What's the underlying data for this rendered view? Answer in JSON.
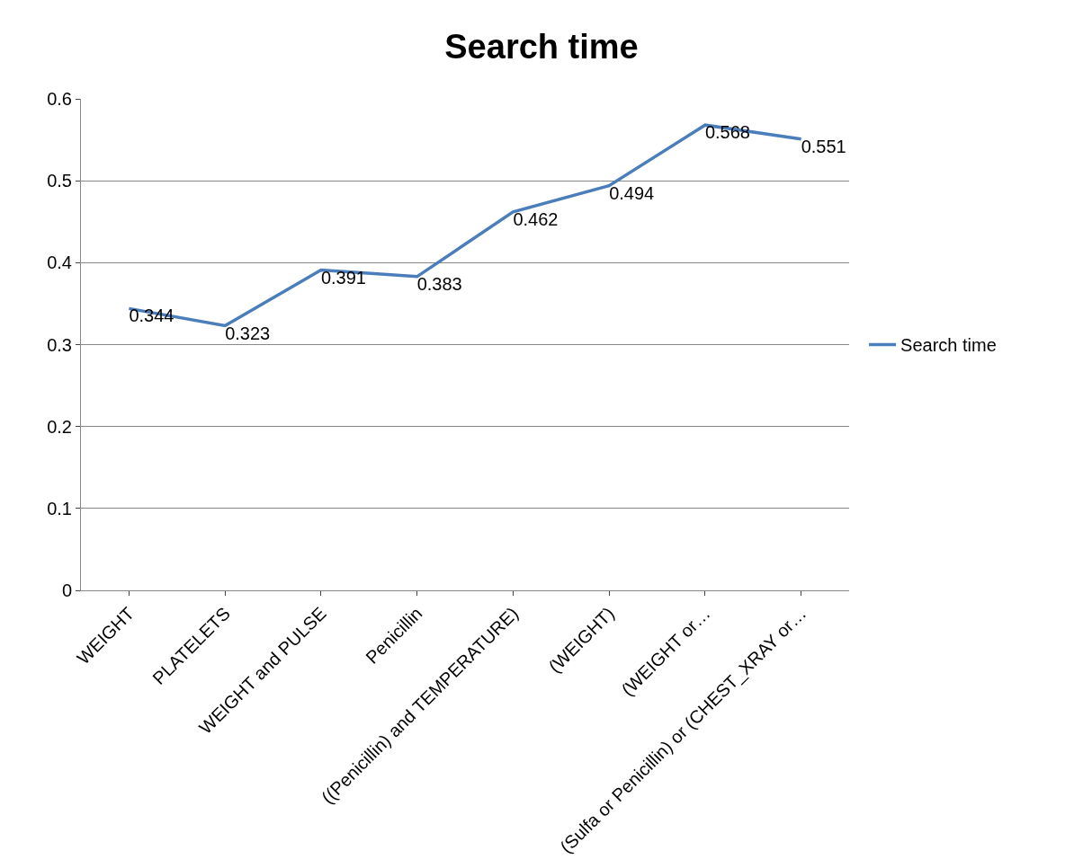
{
  "chart_data": {
    "type": "line",
    "title": "Search time",
    "categories": [
      "WEIGHT",
      "PLATELETS",
      "WEIGHT and PULSE",
      "Penicillin",
      "((Penicillin) and TEMPERATURE)",
      "(WEIGHT)",
      "(WEIGHT or…",
      "(Sulfa or Penicillin) or (CHEST_XRAY or…"
    ],
    "series": [
      {
        "name": "Search time",
        "color": "#4a7ebb",
        "values": [
          0.344,
          0.323,
          0.391,
          0.383,
          0.462,
          0.494,
          0.568,
          0.551
        ]
      }
    ],
    "ylim": [
      0,
      0.6
    ],
    "yticks": [
      0,
      0.1,
      0.2,
      0.3,
      0.4,
      0.5,
      0.6
    ],
    "grid": "y",
    "legend": "right",
    "line_style": "solid",
    "data_labels": true
  }
}
